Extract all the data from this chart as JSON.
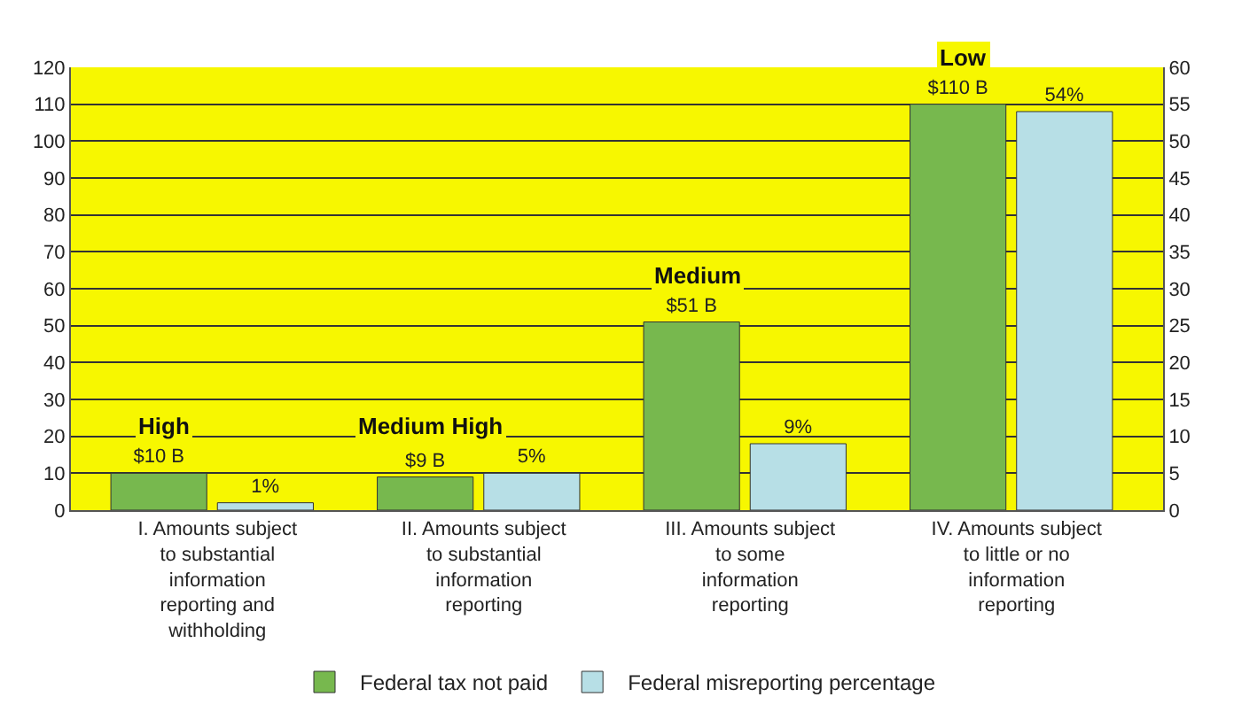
{
  "chart_data": {
    "type": "bar",
    "categories": [
      "I. Amounts subject\nto substantial\ninformation\nreporting and\nwithholding",
      "II. Amounts subject\nto substantial\ninformation\nreporting",
      "III. Amounts subject\nto some\ninformation\nreporting",
      "IV. Amounts subject\nto little or no\ninformation\nreporting"
    ],
    "series": [
      {
        "name": "Federal tax not paid",
        "color": "#77b84e",
        "values": [
          10,
          9,
          51,
          110
        ],
        "value_labels": [
          "$10 B",
          "$9 B",
          "$51 B",
          "$110 B"
        ]
      },
      {
        "name": "Federal misreporting percentage",
        "color": "#b7dfe6",
        "values": [
          1,
          5,
          9,
          54
        ],
        "value_labels": [
          "1%",
          "5%",
          "9%",
          "54%"
        ],
        "axis": "y2"
      }
    ],
    "annotations": [
      "High",
      "Medium High",
      "Medium",
      "Low"
    ],
    "ylim": [
      0,
      120
    ],
    "yticks": [
      0,
      10,
      20,
      30,
      40,
      50,
      60,
      70,
      80,
      90,
      100,
      110,
      120
    ],
    "y2lim": [
      0,
      60
    ],
    "y2ticks": [
      0,
      5,
      10,
      15,
      20,
      25,
      30,
      35,
      40,
      45,
      50,
      55,
      60
    ],
    "grid": "y",
    "legend": "bottom"
  }
}
